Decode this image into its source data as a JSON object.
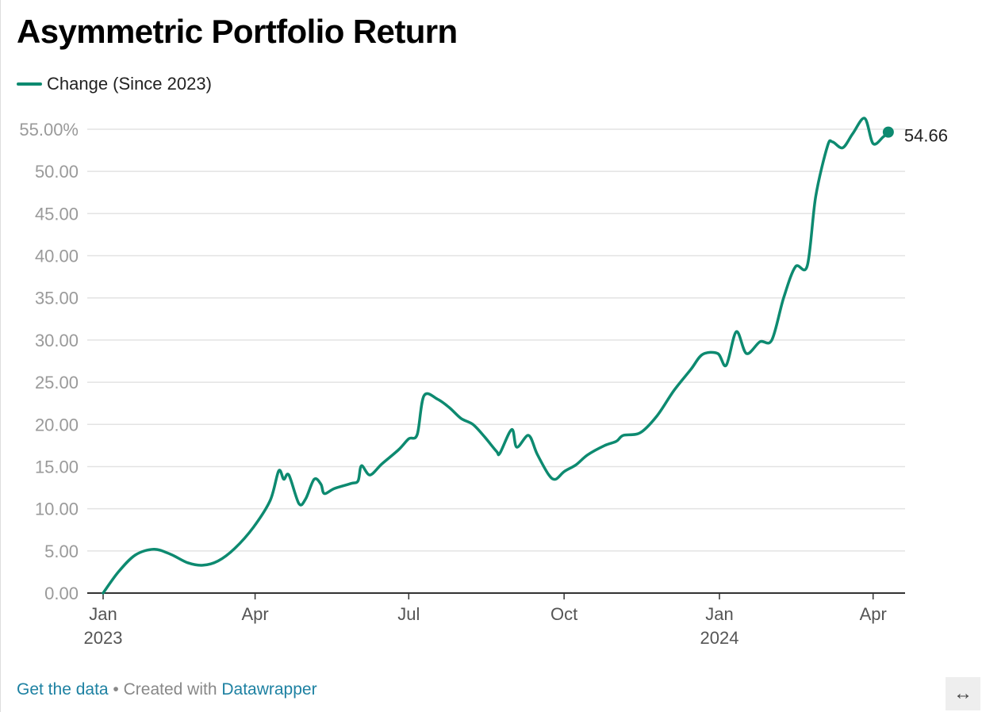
{
  "title": "Asymmetric Portfolio Return",
  "footer": {
    "get_data": "Get the data",
    "separator": " • Created with ",
    "tool": "Datawrapper"
  },
  "resize_icon": "↔",
  "chart_data": {
    "type": "line",
    "title": "Asymmetric Portfolio Return",
    "xlabel": "",
    "ylabel": "",
    "grid": true,
    "legend_position": "top-left",
    "ylim": [
      0,
      55
    ],
    "xlim": [
      "2023-01-01",
      "2024-04-15"
    ],
    "y_ticks": [
      {
        "value": 55,
        "label": "55.00%"
      },
      {
        "value": 50,
        "label": "50.00"
      },
      {
        "value": 45,
        "label": "45.00"
      },
      {
        "value": 40,
        "label": "40.00"
      },
      {
        "value": 35,
        "label": "35.00"
      },
      {
        "value": 30,
        "label": "30.00"
      },
      {
        "value": 25,
        "label": "25.00"
      },
      {
        "value": 20,
        "label": "20.00"
      },
      {
        "value": 15,
        "label": "15.00"
      },
      {
        "value": 10,
        "label": "10.00"
      },
      {
        "value": 5,
        "label": "5.00"
      },
      {
        "value": 0,
        "label": "0.00"
      }
    ],
    "x_ticks": [
      {
        "date": "2023-01-01",
        "label": "Jan",
        "sublabel": "2023"
      },
      {
        "date": "2023-04-01",
        "label": "Apr",
        "sublabel": ""
      },
      {
        "date": "2023-07-01",
        "label": "Jul",
        "sublabel": ""
      },
      {
        "date": "2023-10-01",
        "label": "Oct",
        "sublabel": ""
      },
      {
        "date": "2024-01-01",
        "label": "Jan",
        "sublabel": "2024"
      },
      {
        "date": "2024-04-01",
        "label": "Apr",
        "sublabel": ""
      }
    ],
    "series": [
      {
        "name": "Change (Since 2023)",
        "color": "#0d8a70",
        "end_label": "54.66",
        "points": [
          [
            "2023-01-01",
            0.0
          ],
          [
            "2023-01-10",
            2.5
          ],
          [
            "2023-01-20",
            4.5
          ],
          [
            "2023-01-31",
            5.2
          ],
          [
            "2023-02-10",
            4.6
          ],
          [
            "2023-02-20",
            3.6
          ],
          [
            "2023-03-01",
            3.3
          ],
          [
            "2023-03-10",
            3.8
          ],
          [
            "2023-03-20",
            5.3
          ],
          [
            "2023-03-31",
            7.8
          ],
          [
            "2023-04-10",
            11.0
          ],
          [
            "2023-04-15",
            14.5
          ],
          [
            "2023-04-18",
            13.5
          ],
          [
            "2023-04-21",
            14.0
          ],
          [
            "2023-04-27",
            10.6
          ],
          [
            "2023-05-01",
            11.2
          ],
          [
            "2023-05-06",
            13.5
          ],
          [
            "2023-05-10",
            12.9
          ],
          [
            "2023-05-12",
            11.8
          ],
          [
            "2023-05-18",
            12.4
          ],
          [
            "2023-05-28",
            13.0
          ],
          [
            "2023-06-01",
            13.3
          ],
          [
            "2023-06-03",
            15.1
          ],
          [
            "2023-06-08",
            14.0
          ],
          [
            "2023-06-15",
            15.3
          ],
          [
            "2023-06-25",
            17.0
          ],
          [
            "2023-07-01",
            18.3
          ],
          [
            "2023-07-06",
            18.8
          ],
          [
            "2023-07-10",
            23.4
          ],
          [
            "2023-07-18",
            23.0
          ],
          [
            "2023-07-25",
            22.0
          ],
          [
            "2023-08-01",
            20.7
          ],
          [
            "2023-08-08",
            20.0
          ],
          [
            "2023-08-15",
            18.5
          ],
          [
            "2023-08-22",
            16.8
          ],
          [
            "2023-08-24",
            16.6
          ],
          [
            "2023-08-31",
            19.4
          ],
          [
            "2023-09-03",
            17.3
          ],
          [
            "2023-09-10",
            18.7
          ],
          [
            "2023-09-15",
            16.5
          ],
          [
            "2023-09-22",
            14.0
          ],
          [
            "2023-09-26",
            13.5
          ],
          [
            "2023-10-01",
            14.4
          ],
          [
            "2023-10-08",
            15.2
          ],
          [
            "2023-10-15",
            16.4
          ],
          [
            "2023-10-25",
            17.5
          ],
          [
            "2023-11-01",
            18.0
          ],
          [
            "2023-11-05",
            18.7
          ],
          [
            "2023-11-15",
            19.0
          ],
          [
            "2023-11-25",
            21.0
          ],
          [
            "2023-12-05",
            24.0
          ],
          [
            "2023-12-15",
            26.5
          ],
          [
            "2023-12-22",
            28.3
          ],
          [
            "2023-12-31",
            28.4
          ],
          [
            "2024-01-05",
            27.0
          ],
          [
            "2024-01-11",
            31.0
          ],
          [
            "2024-01-17",
            28.4
          ],
          [
            "2024-01-25",
            29.8
          ],
          [
            "2024-02-01",
            30.0
          ],
          [
            "2024-02-08",
            35.0
          ],
          [
            "2024-02-15",
            38.7
          ],
          [
            "2024-02-22",
            38.8
          ],
          [
            "2024-02-27",
            47.0
          ],
          [
            "2024-03-05",
            53.0
          ],
          [
            "2024-03-08",
            53.5
          ],
          [
            "2024-03-14",
            52.8
          ],
          [
            "2024-03-20",
            54.5
          ],
          [
            "2024-03-27",
            56.3
          ],
          [
            "2024-04-01",
            53.3
          ],
          [
            "2024-04-07",
            54.1
          ],
          [
            "2024-04-10",
            54.66
          ]
        ]
      }
    ]
  }
}
